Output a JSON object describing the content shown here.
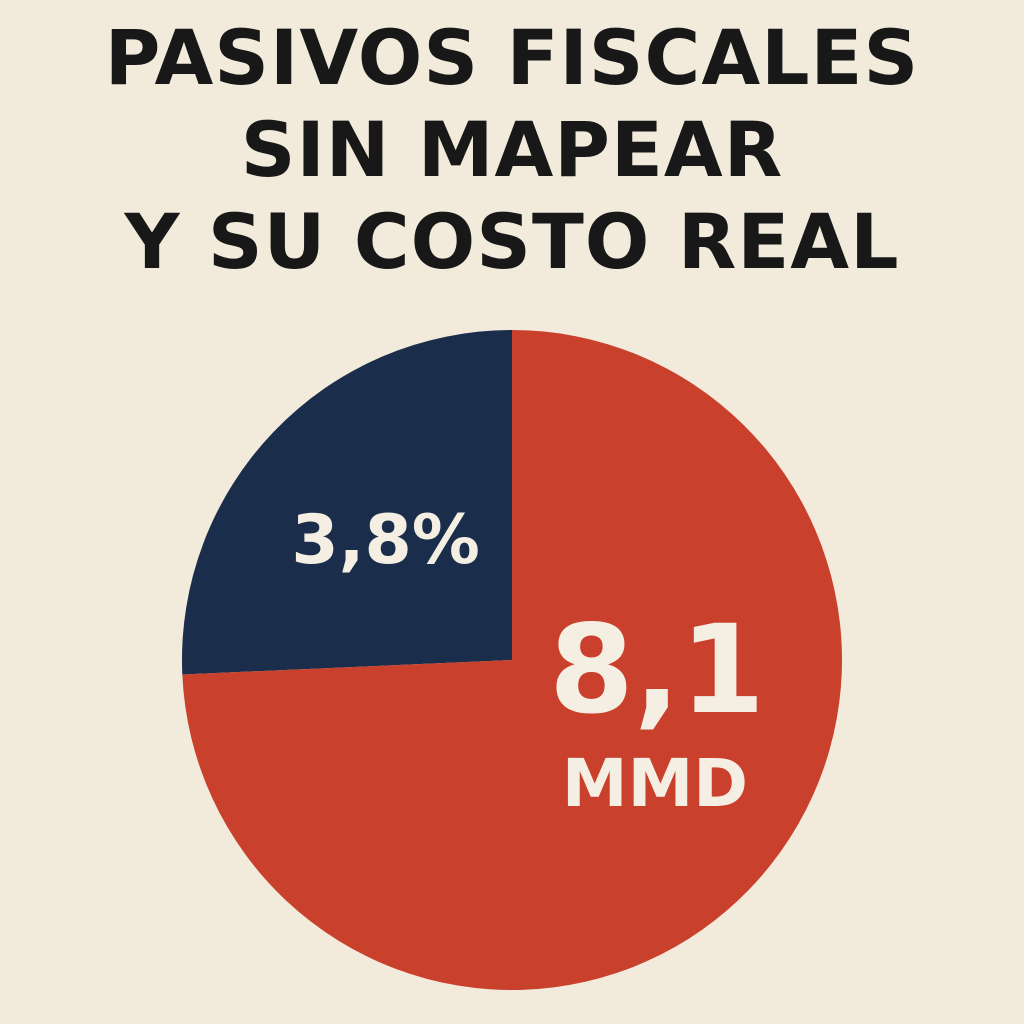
{
  "title_lines": [
    "PASIVOS FISCALES",
    "SIN MAPEAR",
    "Y SU COSTO REAL"
  ],
  "colors": {
    "background": "#f2eadb",
    "title": "#181818",
    "slice_small": "#1a2e4c",
    "slice_large": "#c9402c",
    "label_small": "#f5efe3",
    "label_large": "#f5efe3"
  },
  "chart_data": {
    "type": "pie",
    "slices": [
      {
        "label": "3,8%",
        "value": 25.7,
        "color": "#1a2e4c"
      },
      {
        "label": "8,1",
        "sublabel": "MMD",
        "value": 74.3,
        "color": "#c9402c"
      }
    ]
  }
}
